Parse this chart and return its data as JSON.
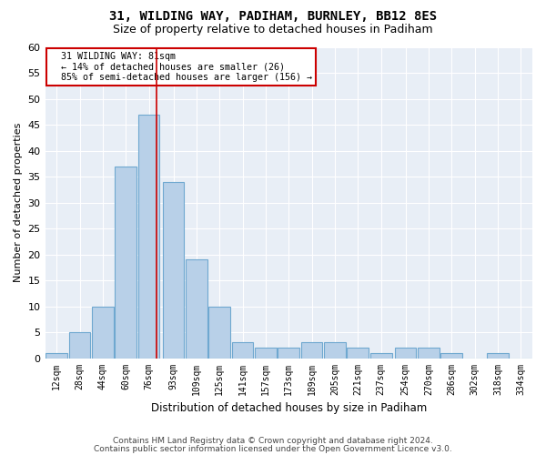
{
  "title1": "31, WILDING WAY, PADIHAM, BURNLEY, BB12 8ES",
  "title2": "Size of property relative to detached houses in Padiham",
  "xlabel": "Distribution of detached houses by size in Padiham",
  "ylabel": "Number of detached properties",
  "footer1": "Contains HM Land Registry data © Crown copyright and database right 2024.",
  "footer2": "Contains public sector information licensed under the Open Government Licence v3.0.",
  "annotation_title": "31 WILDING WAY: 81sqm",
  "annotation_line1": "← 14% of detached houses are smaller (26)",
  "annotation_line2": "85% of semi-detached houses are larger (156) →",
  "bar_color": "#b8d0e8",
  "bar_edge_color": "#6fa8d0",
  "marker_color": "#cc0000",
  "marker_line_x": 81,
  "categories": [
    "12sqm",
    "28sqm",
    "44sqm",
    "60sqm",
    "76sqm",
    "93sqm",
    "109sqm",
    "125sqm",
    "141sqm",
    "157sqm",
    "173sqm",
    "189sqm",
    "205sqm",
    "221sqm",
    "237sqm",
    "254sqm",
    "270sqm",
    "286sqm",
    "302sqm",
    "318sqm",
    "334sqm"
  ],
  "bin_centers": [
    12,
    28,
    44,
    60,
    76,
    93,
    109,
    125,
    141,
    157,
    173,
    189,
    205,
    221,
    237,
    254,
    270,
    286,
    302,
    318,
    334
  ],
  "bin_width": 16,
  "values": [
    1,
    5,
    10,
    37,
    47,
    34,
    19,
    10,
    3,
    2,
    2,
    3,
    3,
    2,
    1,
    2,
    2,
    1,
    0,
    1,
    0
  ],
  "ylim": [
    0,
    60
  ],
  "yticks": [
    0,
    5,
    10,
    15,
    20,
    25,
    30,
    35,
    40,
    45,
    50,
    55,
    60
  ],
  "xlim_left": 4,
  "xlim_right": 342,
  "figure_bg": "#ffffff",
  "axes_bg": "#e8eef6",
  "grid_color": "#ffffff",
  "annotation_box_color": "#ffffff",
  "annotation_box_edge": "#cc0000",
  "title1_fontsize": 10,
  "title2_fontsize": 9,
  "ylabel_fontsize": 8,
  "xlabel_fontsize": 8.5,
  "tick_fontsize": 7,
  "footer_fontsize": 6.5
}
